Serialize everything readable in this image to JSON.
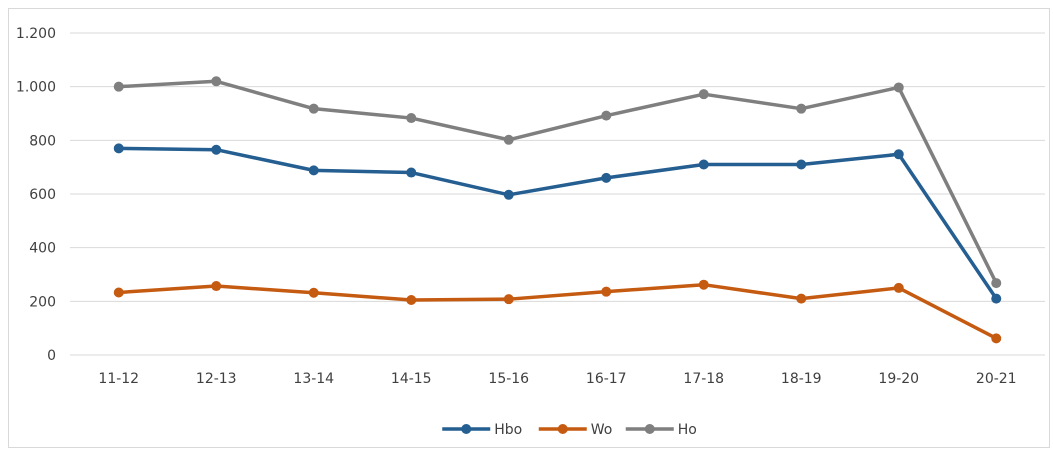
{
  "chart_data": {
    "type": "line",
    "categories": [
      "11-12",
      "12-13",
      "13-14",
      "14-15",
      "15-16",
      "16-17",
      "17-18",
      "18-19",
      "19-20",
      "20-21"
    ],
    "series": [
      {
        "name": "Hbo",
        "color": "#255e91",
        "values": [
          770,
          765,
          688,
          680,
          597,
          660,
          710,
          710,
          748,
          210
        ]
      },
      {
        "name": "Wo",
        "color": "#c55a11",
        "values": [
          233,
          257,
          232,
          205,
          208,
          236,
          262,
          210,
          250,
          62
        ]
      },
      {
        "name": "Ho",
        "color": "#7f7f7f",
        "values": [
          1000,
          1020,
          918,
          883,
          802,
          892,
          972,
          918,
          997,
          268
        ]
      }
    ],
    "y_ticks": [
      {
        "value": 0,
        "label": "0"
      },
      {
        "value": 200,
        "label": "200"
      },
      {
        "value": 400,
        "label": "400"
      },
      {
        "value": 600,
        "label": "600"
      },
      {
        "value": 800,
        "label": "800"
      },
      {
        "value": 1000,
        "label": "1.000"
      },
      {
        "value": 1200,
        "label": "1.200"
      }
    ],
    "ylim": [
      0,
      1200
    ],
    "grid": true,
    "legend_position": "bottom"
  }
}
